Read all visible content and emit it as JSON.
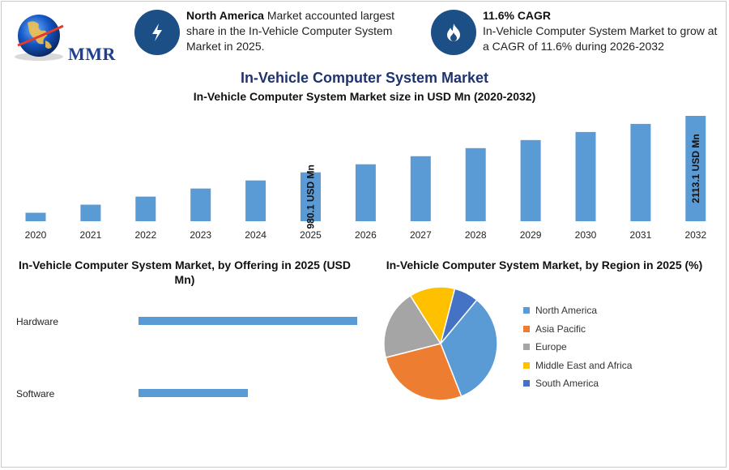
{
  "brand": {
    "logo_text": "MMR"
  },
  "callouts": [
    {
      "bold": "North America",
      "text": " Market accounted largest share in the In-Vehicle Computer System Market in 2025.",
      "icon": "lightning-icon"
    },
    {
      "bold": "11.6% CAGR",
      "text": "In-Vehicle Computer System Market to grow at a CAGR of 11.6% during 2026-2032",
      "icon": "flame-icon"
    }
  ],
  "chart_data": [
    {
      "type": "bar",
      "title": "In-Vehicle Computer System Market",
      "subtitle": "In-Vehicle Computer System Market size in USD Mn (2020-2032)",
      "categories": [
        "2020",
        "2021",
        "2022",
        "2023",
        "2024",
        "2025",
        "2026",
        "2027",
        "2028",
        "2029",
        "2030",
        "2031",
        "2032"
      ],
      "values": [
        170,
        332,
        494,
        656,
        818,
        980.1,
        1142,
        1304,
        1466,
        1628,
        1790,
        1952,
        2113.1
      ],
      "data_labels": [
        {
          "category": "2025",
          "text": "980.1 USD Mn"
        },
        {
          "category": "2032",
          "text": "2113.1 USD Mn"
        }
      ],
      "ylim": [
        0,
        2113.1
      ],
      "color": "#5b9bd5"
    },
    {
      "type": "bar",
      "orientation": "horizontal",
      "title": "In-Vehicle Computer System Market, by Offering in 2025 (USD Mn)",
      "categories": [
        "Hardware",
        "Software"
      ],
      "values": [
        100,
        50
      ],
      "color": "#5b9bd5"
    },
    {
      "type": "pie",
      "title": "In-Vehicle Computer System Market, by Region in 2025 (%)",
      "categories": [
        "North America",
        "Asia Pacific",
        "Europe",
        "Middle East and Africa",
        "South America"
      ],
      "values": [
        33,
        27,
        20,
        13,
        7
      ],
      "colors": [
        "#5b9bd5",
        "#ed7d31",
        "#a5a5a5",
        "#ffc000",
        "#4472c4"
      ],
      "legend": "right"
    }
  ]
}
